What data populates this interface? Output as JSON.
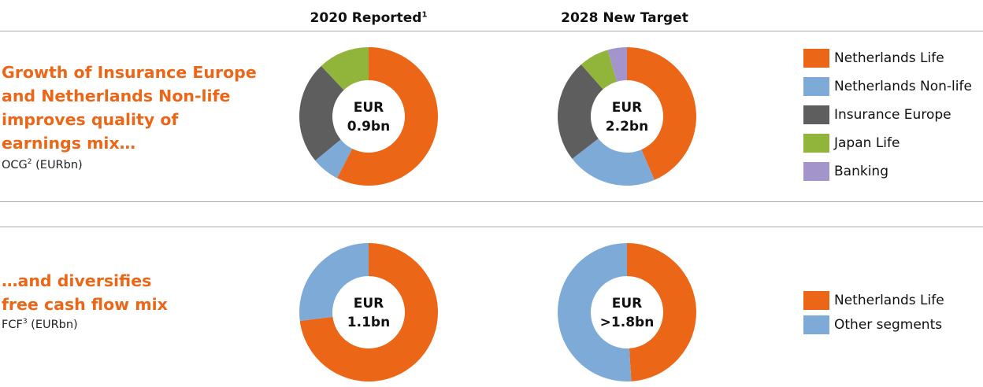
{
  "headers": {
    "col1": "2020 Reported",
    "col1_sup": "1",
    "col2": "2028 New Target"
  },
  "sections": [
    {
      "title_lines": [
        "Growth of Insurance Europe",
        "and Netherlands Non-life",
        "improves quality of",
        "earnings mix…"
      ],
      "subtitle": "OCG",
      "subtitle_sup": "2",
      "subtitle_tail": " (EURbn)"
    },
    {
      "title_lines": [
        "…and diversifies",
        "free cash flow mix"
      ],
      "subtitle": "FCF",
      "subtitle_sup": "3",
      "subtitle_tail": " (EURbn)"
    }
  ],
  "legends": {
    "ocg": [
      {
        "label": "Netherlands Life",
        "color": "#ec6618"
      },
      {
        "label": "Netherlands Non-life",
        "color": "#7eaad8"
      },
      {
        "label": "Insurance Europe",
        "color": "#5e5e5e"
      },
      {
        "label": "Japan Life",
        "color": "#91b43a"
      },
      {
        "label": "Banking",
        "color": "#a395cb"
      }
    ],
    "fcf": [
      {
        "label": "Netherlands Life",
        "color": "#ec6618"
      },
      {
        "label": "Other segments",
        "color": "#7eaad8"
      }
    ]
  },
  "chart_data": [
    {
      "type": "pie",
      "title": "2020 Reported",
      "center_label": [
        "EUR",
        "0.9bn"
      ],
      "series": [
        {
          "name": "Netherlands Life",
          "value": 57.5,
          "color": "#ec6618"
        },
        {
          "name": "Netherlands Non-life",
          "value": 6.5,
          "color": "#7eaad8"
        },
        {
          "name": "Insurance Europe",
          "value": 24.0,
          "color": "#5e5e5e"
        },
        {
          "name": "Japan Life",
          "value": 12.0,
          "color": "#91b43a"
        }
      ]
    },
    {
      "type": "pie",
      "title": "2028 New Target",
      "center_label": [
        "EUR",
        "2.2bn"
      ],
      "series": [
        {
          "name": "Netherlands Life",
          "value": 43.5,
          "color": "#ec6618"
        },
        {
          "name": "Netherlands Non-life",
          "value": 21.0,
          "color": "#7eaad8"
        },
        {
          "name": "Insurance Europe",
          "value": 24.0,
          "color": "#5e5e5e"
        },
        {
          "name": "Japan Life",
          "value": 7.0,
          "color": "#91b43a"
        },
        {
          "name": "Banking",
          "value": 4.5,
          "color": "#a395cb"
        }
      ]
    },
    {
      "type": "pie",
      "title": "2020 Reported",
      "center_label": [
        "EUR",
        "1.1bn"
      ],
      "series": [
        {
          "name": "Netherlands Life",
          "value": 73.0,
          "color": "#ec6618"
        },
        {
          "name": "Other segments",
          "value": 27.0,
          "color": "#7eaad8"
        }
      ]
    },
    {
      "type": "pie",
      "title": "2028 New Target",
      "center_label": [
        "EUR",
        ">1.8bn"
      ],
      "series": [
        {
          "name": "Netherlands Life",
          "value": 49.0,
          "color": "#ec6618"
        },
        {
          "name": "Other segments",
          "value": 51.0,
          "color": "#7eaad8"
        }
      ]
    }
  ]
}
